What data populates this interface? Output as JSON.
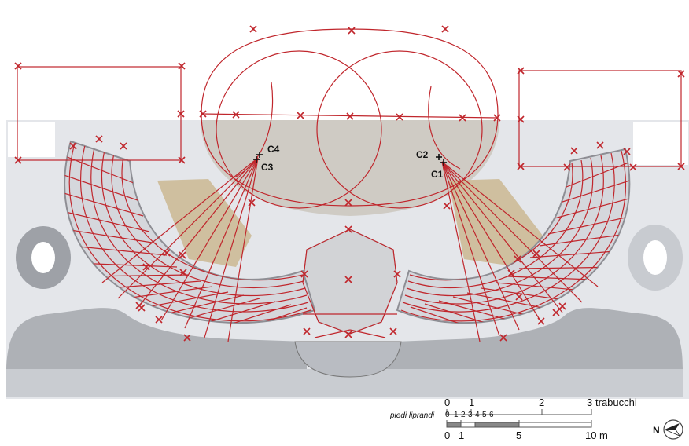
{
  "point_labels": {
    "c1": "C1",
    "c2": "C2",
    "c3": "C3",
    "c4": "C4"
  },
  "scale_bar": {
    "unit_trabucchi": "trabucchi",
    "trabucchi_ticks": [
      "0",
      "1",
      "2",
      "3"
    ],
    "piedi_label": "piedi liprandi",
    "piedi_ticks": [
      "0",
      "1",
      "2",
      "3",
      "4",
      "5",
      "6"
    ],
    "meter_ticks": [
      "0",
      "1",
      "5",
      "10"
    ],
    "unit_m": "m"
  },
  "north": {
    "letter": "N"
  },
  "colors": {
    "construction": "#c0262c",
    "floor": "#d6d9de",
    "wall": "#8e8e94",
    "inlay": "#c9b58c"
  }
}
